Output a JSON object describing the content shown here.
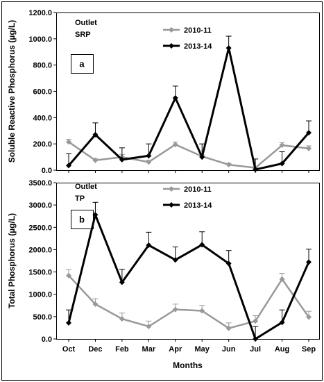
{
  "chart_data": [
    {
      "type": "line",
      "panel": "a",
      "ylabel": "Soluble Reactive Phosphorus (µg/L)",
      "xlabel": "",
      "title_lines": [
        "Outlet",
        "SRP"
      ],
      "categories": [
        "Oct",
        "Dec",
        "Feb",
        "Mar",
        "Apr",
        "May",
        "Jun",
        "Jul",
        "Aug",
        "Sep"
      ],
      "ylim": [
        0,
        1200
      ],
      "yticks": [
        "0.0",
        "200.0",
        "400.0",
        "600.0",
        "800.0",
        "1000.0",
        "1200.0"
      ],
      "legend_position": "top-center",
      "series": [
        {
          "name": "2010-11",
          "color": "#999999",
          "values": [
            215,
            75,
            100,
            62,
            195,
            105,
            42,
            18,
            190,
            165
          ],
          "errors": [
            20,
            15,
            20,
            12,
            20,
            10,
            10,
            8,
            20,
            20
          ]
        },
        {
          "name": "2013-14",
          "color": "#000000",
          "values": [
            35,
            270,
            80,
            110,
            550,
            100,
            930,
            5,
            50,
            285
          ],
          "errors": [
            90,
            90,
            90,
            90,
            90,
            100,
            90,
            80,
            90,
            90
          ]
        }
      ]
    },
    {
      "type": "line",
      "panel": "b",
      "ylabel": "Total Phosphorus (µg/L)",
      "xlabel": "Months",
      "title_lines": [
        "Outlet",
        "TP"
      ],
      "categories": [
        "Oct",
        "Dec",
        "Feb",
        "Mar",
        "Apr",
        "May",
        "Jun",
        "Jul",
        "Aug",
        "Sep"
      ],
      "ylim": [
        0,
        3500
      ],
      "yticks": [
        "0.0",
        "500.0",
        "1000.0",
        "1500.0",
        "2000.0",
        "2500.0",
        "3000.0",
        "3500.0"
      ],
      "legend_position": "top-center",
      "series": [
        {
          "name": "2010-11",
          "color": "#999999",
          "values": [
            1420,
            780,
            450,
            280,
            660,
            630,
            240,
            400,
            1340,
            490
          ],
          "errors": [
            130,
            120,
            130,
            120,
            120,
            120,
            120,
            120,
            130,
            130
          ]
        },
        {
          "name": "2013-14",
          "color": "#000000",
          "values": [
            360,
            2780,
            1270,
            2100,
            1770,
            2110,
            1690,
            0,
            370,
            1720
          ],
          "errors": [
            290,
            280,
            290,
            290,
            290,
            290,
            290,
            280,
            280,
            290
          ]
        }
      ]
    }
  ]
}
